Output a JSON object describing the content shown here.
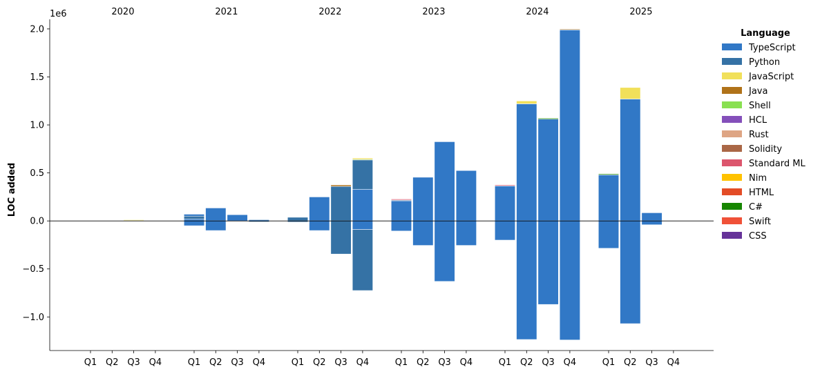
{
  "chart_data": {
    "type": "bar",
    "stacked": true,
    "ylabel": "LOC added",
    "y_multiplier": "1e6",
    "ylim": [
      -1.35,
      2.1
    ],
    "yticks": [
      -1.0,
      -0.5,
      0.0,
      0.5,
      1.0,
      1.5,
      2.0
    ],
    "ytick_labels": [
      "−1.0",
      "−0.5",
      "0.0",
      "0.5",
      "1.0",
      "1.5",
      "2.0"
    ],
    "years": [
      "2020",
      "2021",
      "2022",
      "2023",
      "2024",
      "2025"
    ],
    "quarters": [
      "Q1",
      "Q2",
      "Q3",
      "Q4"
    ],
    "legend": {
      "title": "Language",
      "placement": "right",
      "entries": [
        {
          "name": "TypeScript",
          "color": "#3178c6"
        },
        {
          "name": "Python",
          "color": "#3572a5"
        },
        {
          "name": "JavaScript",
          "color": "#f1e05a"
        },
        {
          "name": "Java",
          "color": "#b07219"
        },
        {
          "name": "Shell",
          "color": "#89e051"
        },
        {
          "name": "HCL",
          "color": "#844fba"
        },
        {
          "name": "Rust",
          "color": "#dea584"
        },
        {
          "name": "Solidity",
          "color": "#aa6746"
        },
        {
          "name": "Standard ML",
          "color": "#dc566d"
        },
        {
          "name": "Nim",
          "color": "#ffc200"
        },
        {
          "name": "HTML",
          "color": "#e34c26"
        },
        {
          "name": "C#",
          "color": "#178600"
        },
        {
          "name": "Swift",
          "color": "#f05138"
        },
        {
          "name": "CSS",
          "color": "#663399"
        }
      ]
    },
    "bars": [
      {
        "year": "2020",
        "quarter": "Q3",
        "segments": [
          {
            "series": "TypeScript",
            "from": 0,
            "to": 0.004
          },
          {
            "series": "JavaScript",
            "from": 0.004,
            "to": 0.012
          }
        ]
      },
      {
        "year": "2021",
        "quarter": "Q1",
        "segments": [
          {
            "series": "TypeScript",
            "from": 0,
            "to": 0.07
          },
          {
            "series": "Python",
            "from": 0.02,
            "to": 0.05
          },
          {
            "series": "TypeScript",
            "from": -0.05,
            "to": 0
          }
        ]
      },
      {
        "year": "2021",
        "quarter": "Q2",
        "segments": [
          {
            "series": "TypeScript",
            "from": 0,
            "to": 0.135
          },
          {
            "series": "TypeScript",
            "from": -0.1,
            "to": 0
          }
        ]
      },
      {
        "year": "2021",
        "quarter": "Q3",
        "segments": [
          {
            "series": "TypeScript",
            "from": 0,
            "to": 0.065
          }
        ]
      },
      {
        "year": "2021",
        "quarter": "Q4",
        "segments": [
          {
            "series": "TypeScript",
            "from": 0,
            "to": 0.012
          },
          {
            "series": "Python",
            "from": 0.012,
            "to": 0.018
          },
          {
            "series": "Python",
            "from": -0.01,
            "to": 0
          }
        ]
      },
      {
        "year": "2022",
        "quarter": "Q1",
        "segments": [
          {
            "series": "Python",
            "from": 0,
            "to": 0.038
          },
          {
            "series": "Python",
            "from": -0.012,
            "to": 0
          }
        ]
      },
      {
        "year": "2022",
        "quarter": "Q2",
        "segments": [
          {
            "series": "TypeScript",
            "from": 0,
            "to": 0.25
          },
          {
            "series": "TypeScript",
            "from": -0.1,
            "to": 0
          }
        ]
      },
      {
        "year": "2022",
        "quarter": "Q3",
        "segments": [
          {
            "series": "Python",
            "from": 0,
            "to": 0.36
          },
          {
            "series": "Java",
            "from": 0.36,
            "to": 0.375
          },
          {
            "series": "Python",
            "from": -0.345,
            "to": 0
          }
        ]
      },
      {
        "year": "2022",
        "quarter": "Q4",
        "segments": [
          {
            "series": "TypeScript",
            "from": 0,
            "to": 0.33
          },
          {
            "series": "Python",
            "from": 0.33,
            "to": 0.635
          },
          {
            "series": "C#",
            "from": 0.635,
            "to": 0.642
          },
          {
            "series": "JavaScript",
            "from": 0.642,
            "to": 0.655
          },
          {
            "series": "TypeScript",
            "from": -0.09,
            "to": 0
          },
          {
            "series": "Python",
            "from": -0.725,
            "to": -0.09
          }
        ]
      },
      {
        "year": "2023",
        "quarter": "Q1",
        "segments": [
          {
            "series": "TypeScript",
            "from": 0,
            "to": 0.21
          },
          {
            "series": "Python",
            "from": 0.21,
            "to": 0.218
          },
          {
            "series": "Standard ML",
            "from": 0.218,
            "to": 0.228
          },
          {
            "series": "TypeScript",
            "from": -0.105,
            "to": 0
          }
        ]
      },
      {
        "year": "2023",
        "quarter": "Q2",
        "segments": [
          {
            "series": "TypeScript",
            "from": 0,
            "to": 0.455
          },
          {
            "series": "TypeScript",
            "from": -0.255,
            "to": 0
          }
        ]
      },
      {
        "year": "2023",
        "quarter": "Q3",
        "segments": [
          {
            "series": "TypeScript",
            "from": 0,
            "to": 0.825
          },
          {
            "series": "TypeScript",
            "from": -0.63,
            "to": 0
          }
        ]
      },
      {
        "year": "2023",
        "quarter": "Q4",
        "segments": [
          {
            "series": "TypeScript",
            "from": 0,
            "to": 0.525
          },
          {
            "series": "TypeScript",
            "from": -0.255,
            "to": 0
          }
        ]
      },
      {
        "year": "2024",
        "quarter": "Q1",
        "segments": [
          {
            "series": "TypeScript",
            "from": 0,
            "to": 0.365
          },
          {
            "series": "Standard ML",
            "from": 0.365,
            "to": 0.375
          },
          {
            "series": "TypeScript",
            "from": -0.2,
            "to": 0
          }
        ]
      },
      {
        "year": "2024",
        "quarter": "Q2",
        "segments": [
          {
            "series": "TypeScript",
            "from": 0,
            "to": 1.22
          },
          {
            "series": "JavaScript",
            "from": 1.22,
            "to": 1.25
          },
          {
            "series": "TypeScript",
            "from": -1.235,
            "to": 0
          }
        ]
      },
      {
        "year": "2024",
        "quarter": "Q3",
        "segments": [
          {
            "series": "TypeScript",
            "from": 0,
            "to": 1.06
          },
          {
            "series": "C#",
            "from": 1.06,
            "to": 1.07
          },
          {
            "series": "TypeScript",
            "from": -0.87,
            "to": 0
          }
        ]
      },
      {
        "year": "2024",
        "quarter": "Q4",
        "segments": [
          {
            "series": "TypeScript",
            "from": 0,
            "to": 1.99
          },
          {
            "series": "Java",
            "from": 1.99,
            "to": 1.998
          },
          {
            "series": "TypeScript",
            "from": -1.24,
            "to": 0
          }
        ]
      },
      {
        "year": "2025",
        "quarter": "Q1",
        "segments": [
          {
            "series": "TypeScript",
            "from": 0,
            "to": 0.48
          },
          {
            "series": "C#",
            "from": 0.48,
            "to": 0.49
          },
          {
            "series": "TypeScript",
            "from": -0.285,
            "to": 0
          }
        ]
      },
      {
        "year": "2025",
        "quarter": "Q2",
        "segments": [
          {
            "series": "TypeScript",
            "from": 0,
            "to": 1.27
          },
          {
            "series": "JavaScript",
            "from": 1.27,
            "to": 1.39
          },
          {
            "series": "TypeScript",
            "from": -1.07,
            "to": 0
          }
        ]
      },
      {
        "year": "2025",
        "quarter": "Q3",
        "segments": [
          {
            "series": "TypeScript",
            "from": 0,
            "to": 0.085
          },
          {
            "series": "TypeScript",
            "from": -0.04,
            "to": 0
          }
        ]
      }
    ]
  }
}
